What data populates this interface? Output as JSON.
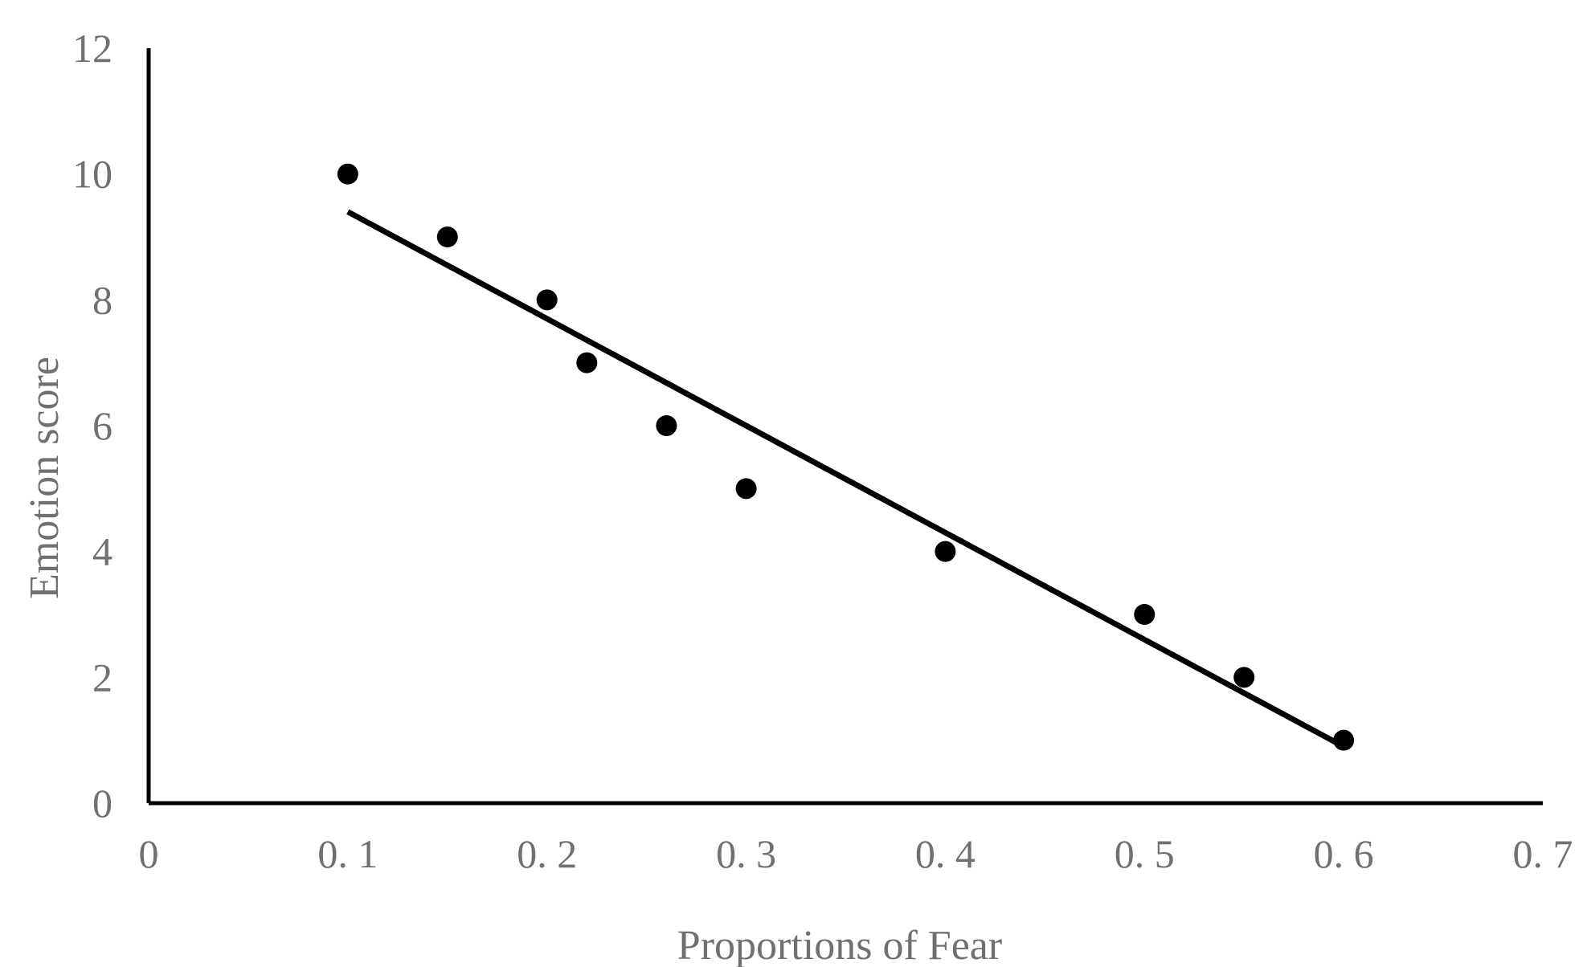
{
  "chart_data": {
    "type": "scatter",
    "title": "",
    "xlabel": "Proportions of Fear",
    "ylabel": "Emotion score",
    "xlim": [
      0,
      0.7
    ],
    "ylim": [
      0,
      12
    ],
    "x_ticks": [
      0,
      0.1,
      0.2,
      0.3,
      0.4,
      0.5,
      0.6,
      0.7
    ],
    "x_tick_labels": [
      "0",
      "0. 1",
      "0. 2",
      "0. 3",
      "0. 4",
      "0. 5",
      "0. 6",
      "0. 7"
    ],
    "y_ticks": [
      0,
      2,
      4,
      6,
      8,
      10,
      12
    ],
    "y_tick_labels": [
      "0",
      "2",
      "4",
      "6",
      "8",
      "10",
      "12"
    ],
    "grid": false,
    "legend": "none",
    "series": [
      {
        "points": [
          {
            "x": 0.1,
            "y": 10
          },
          {
            "x": 0.15,
            "y": 9
          },
          {
            "x": 0.2,
            "y": 8
          },
          {
            "x": 0.22,
            "y": 7
          },
          {
            "x": 0.26,
            "y": 6
          },
          {
            "x": 0.3,
            "y": 5
          },
          {
            "x": 0.4,
            "y": 4
          },
          {
            "x": 0.5,
            "y": 3
          },
          {
            "x": 0.55,
            "y": 2
          },
          {
            "x": 0.6,
            "y": 1
          }
        ],
        "color": "#000000"
      }
    ],
    "trendline": {
      "type": "linear",
      "x_start": 0.1,
      "y_start": 9.4,
      "x_end": 0.6,
      "y_end": 0.9,
      "color": "#000000"
    },
    "colors": {
      "axis": "#000000",
      "text": "#707070",
      "marker": "#000000"
    }
  }
}
